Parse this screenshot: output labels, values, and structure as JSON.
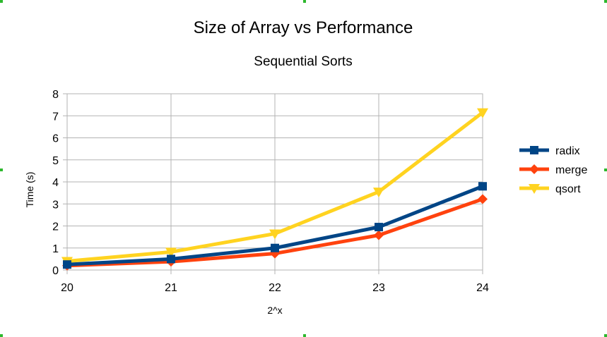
{
  "chart_data": {
    "type": "line",
    "title": "Size of Array vs Performance",
    "subtitle": "Sequential Sorts",
    "xlabel": "2^x",
    "ylabel": "Time (s)",
    "x": [
      20,
      21,
      22,
      23,
      24
    ],
    "categories": [
      "20",
      "21",
      "22",
      "23",
      "24"
    ],
    "ylim": [
      0,
      8
    ],
    "yticks": [
      0,
      1,
      2,
      3,
      4,
      5,
      6,
      7,
      8
    ],
    "grid": true,
    "legend_position": "right",
    "series": [
      {
        "name": "radix",
        "values": [
          0.25,
          0.5,
          1.0,
          1.95,
          3.8
        ],
        "color": "#004586",
        "marker": "square"
      },
      {
        "name": "merge",
        "values": [
          0.2,
          0.38,
          0.75,
          1.58,
          3.22
        ],
        "color": "#ff420e",
        "marker": "diamond"
      },
      {
        "name": "qsort",
        "values": [
          0.4,
          0.82,
          1.65,
          3.55,
          7.15
        ],
        "color": "#ffd320",
        "marker": "triangle-down"
      }
    ]
  },
  "handles": {
    "color": "#2db82d"
  }
}
